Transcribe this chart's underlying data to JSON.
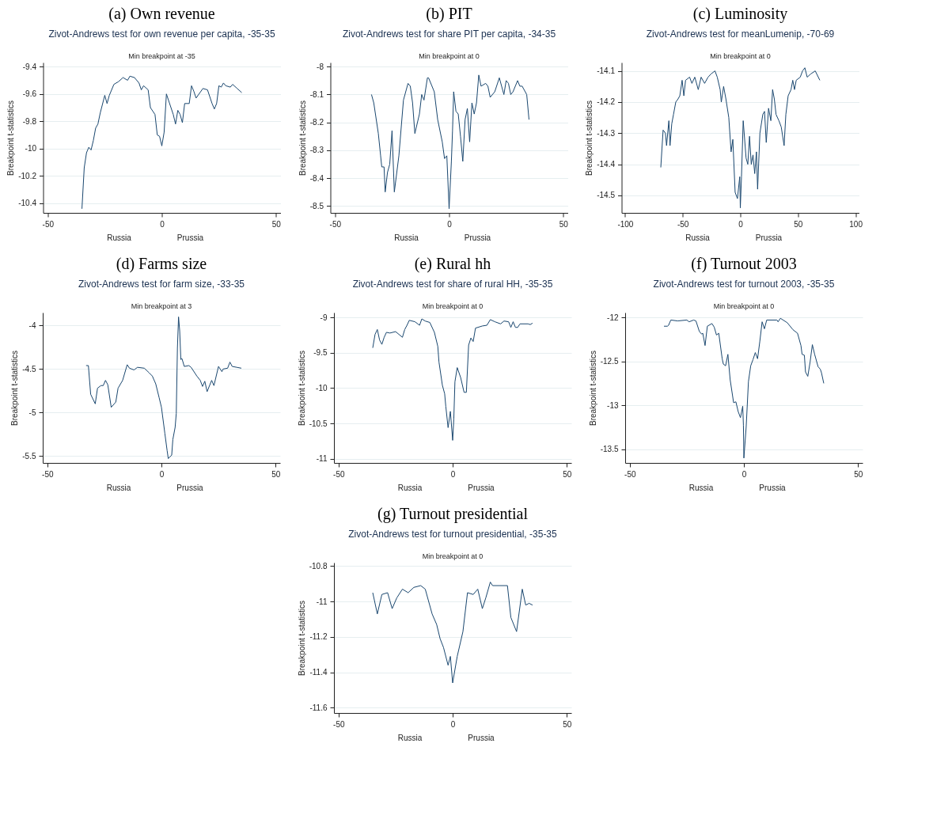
{
  "chart_data": [
    {
      "type": "line",
      "title": "(a) Own revenue",
      "subtitle": "Zivot-Andrews test for own revenue per capita, -35-35",
      "annotations": [
        "Min breakpoint at -35",
        "Russia",
        "Prussia"
      ],
      "ylabel": "Breakpoint t-statistics",
      "grid": "y",
      "xlim": [
        -52,
        52
      ],
      "xticks": [
        -50,
        0,
        50
      ],
      "ylim": [
        -10.47,
        -9.37
      ],
      "yticks": [
        -9.4,
        -9.6,
        -9.8,
        -10,
        -10.2,
        -10.4
      ],
      "x": [
        -35,
        -34,
        -33,
        -32,
        -31,
        -30,
        -29,
        -28,
        -27,
        -25,
        -24,
        -23,
        -21,
        -19,
        -17,
        -15,
        -14,
        -12,
        -10,
        -9,
        -8,
        -6,
        -5,
        -3,
        -2,
        -1,
        0,
        1,
        2,
        4,
        5,
        6,
        7,
        8,
        9,
        10,
        12,
        13,
        14,
        15,
        18,
        20,
        22,
        23,
        24,
        25,
        26,
        27,
        28,
        30,
        31,
        33,
        35
      ],
      "series": [
        {
          "color": "#1a476f",
          "values": [
            -10.44,
            -10.14,
            -10.03,
            -9.99,
            -10.01,
            -9.94,
            -9.85,
            -9.82,
            -9.74,
            -9.61,
            -9.67,
            -9.61,
            -9.53,
            -9.51,
            -9.48,
            -9.5,
            -9.47,
            -9.48,
            -9.52,
            -9.57,
            -9.54,
            -9.57,
            -9.7,
            -9.75,
            -9.9,
            -9.91,
            -9.98,
            -9.88,
            -9.6,
            -9.7,
            -9.75,
            -9.82,
            -9.72,
            -9.75,
            -9.81,
            -9.67,
            -9.67,
            -9.54,
            -9.58,
            -9.63,
            -9.56,
            -9.57,
            -9.67,
            -9.71,
            -9.67,
            -9.54,
            -9.55,
            -9.52,
            -9.54,
            -9.55,
            -9.53,
            -9.56,
            -9.59
          ]
        }
      ]
    },
    {
      "type": "line",
      "title": "(b) PIT",
      "subtitle": "Zivot-Andrews test for share PIT per capita, -34-35",
      "annotations": [
        "Min breakpoint at 0",
        "Russia",
        "Prussia"
      ],
      "ylabel": "Breakpoint t-statistics",
      "grid": "y",
      "xlim": [
        -52,
        52
      ],
      "xticks": [
        -50,
        0,
        50
      ],
      "ylim": [
        -8.525,
        -7.985
      ],
      "yticks": [
        -8,
        -8.1,
        -8.2,
        -8.3,
        -8.4,
        -8.5
      ],
      "x": [
        -34,
        -33,
        -31,
        -30,
        -29.5,
        -28.5,
        -28,
        -27,
        -26,
        -25,
        -24,
        -22,
        -20,
        -18,
        -17,
        -16,
        -15,
        -13,
        -12,
        -11,
        -9.5,
        -9,
        -6.5,
        -5,
        -3,
        -2,
        -1,
        0,
        1,
        1.5,
        2,
        3,
        4,
        5,
        6,
        7,
        8,
        9,
        10,
        11,
        12,
        13,
        14,
        16,
        17,
        18,
        20,
        22,
        24,
        25,
        26,
        27,
        28,
        30,
        31,
        32,
        34,
        35
      ],
      "series": [
        {
          "color": "#1a476f",
          "values": [
            -8.1,
            -8.13,
            -8.24,
            -8.32,
            -8.36,
            -8.36,
            -8.45,
            -8.38,
            -8.35,
            -8.23,
            -8.45,
            -8.32,
            -8.12,
            -8.06,
            -8.07,
            -8.13,
            -8.24,
            -8.17,
            -8.1,
            -8.12,
            -8.04,
            -8.04,
            -8.09,
            -8.19,
            -8.27,
            -8.33,
            -8.32,
            -8.51,
            -8.34,
            -8.23,
            -8.09,
            -8.16,
            -8.17,
            -8.25,
            -8.34,
            -8.19,
            -8.15,
            -8.27,
            -8.13,
            -8.17,
            -8.13,
            -8.03,
            -8.07,
            -8.06,
            -8.07,
            -8.11,
            -8.09,
            -8.04,
            -8.1,
            -8.05,
            -8.06,
            -8.1,
            -8.09,
            -8.05,
            -8.07,
            -8.07,
            -8.1,
            -8.19
          ]
        }
      ]
    },
    {
      "type": "line",
      "title": "(c) Luminosity",
      "subtitle": "Zivot-Andrews test for meanLumenip, -70-69",
      "annotations": [
        "Min breakpoint at 0",
        "Russia",
        "Prussia"
      ],
      "ylabel": "Breakpoint t-statistics",
      "grid": "y",
      "xlim": [
        -103,
        103
      ],
      "xticks": [
        -100,
        -50,
        0,
        50,
        100
      ],
      "ylim": [
        -14.556,
        -14.073
      ],
      "yticks": [
        -14.1,
        -14.2,
        -14.3,
        -14.4,
        -14.5
      ],
      "x": [
        -69,
        -68,
        -67,
        -65,
        -64,
        -62,
        -61,
        -59.5,
        -58,
        -56,
        -54,
        -52.5,
        -50.5,
        -49,
        -47.5,
        -44,
        -42,
        -39.5,
        -36.5,
        -34,
        -31,
        -28,
        -25.5,
        -22,
        -20,
        -17.5,
        -16.5,
        -14.5,
        -12.5,
        -10,
        -8,
        -6.5,
        -4.5,
        -2.5,
        -0.5,
        0,
        1,
        2.5,
        5,
        6.5,
        8,
        9.5,
        11,
        12.5,
        14,
        15,
        17,
        19.5,
        21,
        22.5,
        24.5,
        26.5,
        28,
        29.5,
        31,
        33.5,
        35.5,
        38,
        39.5,
        41.5,
        44,
        45.5,
        47,
        48.5,
        52,
        54,
        56,
        58,
        61,
        65,
        69
      ],
      "series": [
        {
          "color": "#1a476f",
          "values": [
            -14.41,
            -14.35,
            -14.29,
            -14.3,
            -14.34,
            -14.26,
            -14.34,
            -14.27,
            -14.24,
            -14.2,
            -14.19,
            -14.18,
            -14.13,
            -14.18,
            -14.13,
            -14.12,
            -14.14,
            -14.12,
            -14.16,
            -14.12,
            -14.14,
            -14.12,
            -14.11,
            -14.1,
            -14.12,
            -14.16,
            -14.2,
            -14.15,
            -14.19,
            -14.25,
            -14.36,
            -14.32,
            -14.49,
            -14.51,
            -14.44,
            -14.54,
            -14.44,
            -14.26,
            -14.38,
            -14.4,
            -14.31,
            -14.4,
            -14.37,
            -14.43,
            -14.36,
            -14.48,
            -14.3,
            -14.24,
            -14.23,
            -14.33,
            -14.22,
            -14.26,
            -14.16,
            -14.19,
            -14.24,
            -14.26,
            -14.28,
            -14.34,
            -14.24,
            -14.18,
            -14.16,
            -14.13,
            -14.16,
            -14.13,
            -14.12,
            -14.1,
            -14.09,
            -14.12,
            -14.11,
            -14.1,
            -14.13
          ]
        }
      ]
    },
    {
      "type": "line",
      "title": "(d) Farms size",
      "subtitle": "Zivot-Andrews test for farm size, -33-35",
      "annotations": [
        "Min breakpoint at 3",
        "Russia",
        "Prussia"
      ],
      "ylabel": "Breakpoint t-statistics",
      "grid": "y",
      "xlim": [
        -52,
        52
      ],
      "xticks": [
        -50,
        0,
        50
      ],
      "ylim": [
        -5.58,
        -3.85
      ],
      "yticks": [
        -4,
        -4.5,
        -5,
        -5.5
      ],
      "x": [
        -33,
        -32,
        -31,
        -29,
        -28,
        -26.5,
        -25.5,
        -24.5,
        -23.5,
        -22,
        -20,
        -19,
        -17,
        -15,
        -14,
        -12,
        -10.5,
        -7.5,
        -5.5,
        -4,
        -2.5,
        -1,
        0,
        1.5,
        2.5,
        3,
        4.5,
        5,
        6,
        6.5,
        7,
        7.5,
        8,
        8.5,
        9,
        10,
        12,
        13,
        15.5,
        17,
        18,
        19,
        20,
        22,
        23,
        25,
        26.5,
        27,
        29,
        30,
        31,
        33,
        35
      ],
      "series": [
        {
          "color": "#1a476f",
          "values": [
            -4.46,
            -4.46,
            -4.79,
            -4.9,
            -4.72,
            -4.69,
            -4.69,
            -4.63,
            -4.68,
            -4.94,
            -4.88,
            -4.72,
            -4.63,
            -4.45,
            -4.49,
            -4.51,
            -4.48,
            -4.49,
            -4.54,
            -4.58,
            -4.67,
            -4.83,
            -4.94,
            -5.24,
            -5.44,
            -5.53,
            -5.49,
            -5.31,
            -5.17,
            -5.01,
            -4.26,
            -3.9,
            -4.06,
            -4.39,
            -4.38,
            -4.47,
            -4.46,
            -4.48,
            -4.58,
            -4.63,
            -4.7,
            -4.64,
            -4.76,
            -4.63,
            -4.69,
            -4.47,
            -4.53,
            -4.5,
            -4.49,
            -4.42,
            -4.47,
            -4.48,
            -4.49
          ]
        }
      ]
    },
    {
      "type": "line",
      "title": "(e) Rural hh",
      "subtitle": "Zivot-Andrews test for share of rural HH, -35-35",
      "annotations": [
        "Min breakpoint at 0",
        "Russia",
        "Prussia"
      ],
      "ylabel": "Breakpoint t-statistics",
      "grid": "y",
      "xlim": [
        -52,
        52
      ],
      "xticks": [
        -50,
        0,
        50
      ],
      "ylim": [
        -11.06,
        -8.93
      ],
      "yticks": [
        -9,
        -9.5,
        -10,
        -10.5,
        -11
      ],
      "x": [
        -35,
        -34,
        -33,
        -32,
        -31,
        -30,
        -29,
        -27.5,
        -25,
        -22,
        -21,
        -20,
        -19,
        -16.5,
        -14.5,
        -13.5,
        -12,
        -10,
        -8,
        -6.5,
        -6,
        -4.5,
        -3.5,
        -3,
        -2,
        -1,
        0,
        0.5,
        1,
        2,
        3.5,
        5,
        6,
        7,
        8,
        9,
        10,
        13,
        15,
        16.5,
        18.5,
        21,
        22.5,
        24.5,
        25.5,
        26.5,
        27.5,
        28.5,
        29.5,
        33,
        34,
        35
      ],
      "series": [
        {
          "color": "#1a476f",
          "values": [
            -9.43,
            -9.24,
            -9.17,
            -9.32,
            -9.38,
            -9.28,
            -9.21,
            -9.22,
            -9.2,
            -9.28,
            -9.17,
            -9.11,
            -9.04,
            -9.06,
            -9.11,
            -9.02,
            -9.05,
            -9.07,
            -9.21,
            -9.41,
            -9.63,
            -9.96,
            -10.08,
            -10.26,
            -10.56,
            -10.33,
            -10.74,
            -10.44,
            -9.91,
            -9.71,
            -9.85,
            -10.06,
            -10.06,
            -9.39,
            -9.29,
            -9.34,
            -9.15,
            -9.12,
            -9.11,
            -9.03,
            -9.06,
            -9.09,
            -9.05,
            -9.06,
            -9.14,
            -9.06,
            -9.14,
            -9.14,
            -9.09,
            -9.09,
            -9.1,
            -9.08
          ]
        }
      ]
    },
    {
      "type": "line",
      "title": "(f) Turnout 2003",
      "subtitle": "Zivot-Andrews test for turnout 2003, -35-35",
      "annotations": [
        "Min breakpoint at 0",
        "Russia",
        "Prussia"
      ],
      "ylabel": "Breakpoint t-statistics",
      "grid": "y",
      "xlim": [
        -52,
        52
      ],
      "xticks": [
        -50,
        0,
        50
      ],
      "ylim": [
        -13.655,
        -11.945
      ],
      "yticks": [
        -12,
        -12.5,
        -13,
        -13.5
      ],
      "x": [
        -35,
        -33.5,
        -33,
        -32,
        -29,
        -25,
        -24,
        -22,
        -21,
        -19.5,
        -18.5,
        -18,
        -17,
        -16,
        -14,
        -13,
        -12,
        -11,
        -9.5,
        -9,
        -8,
        -7,
        -6,
        -4.5,
        -3.5,
        -2.5,
        -1.5,
        -0.5,
        -0.2,
        0,
        1,
        2,
        3,
        4,
        5,
        6,
        7,
        8,
        9,
        10,
        14.5,
        15,
        16,
        19,
        21.5,
        23.5,
        25,
        25.5,
        26.5,
        27,
        28,
        29,
        30,
        31,
        32.5,
        33.5,
        34,
        35
      ],
      "series": [
        {
          "color": "#1a476f",
          "values": [
            -12.1,
            -12.1,
            -12.09,
            -12.03,
            -12.04,
            -12.03,
            -12.05,
            -12.03,
            -12.04,
            -12.16,
            -12.19,
            -12.18,
            -12.32,
            -12.1,
            -12.07,
            -12.11,
            -12.2,
            -12.18,
            -12.47,
            -12.53,
            -12.55,
            -12.42,
            -12.71,
            -12.97,
            -12.96,
            -13.07,
            -13.14,
            -13.01,
            -13.23,
            -13.6,
            -13.25,
            -12.73,
            -12.55,
            -12.48,
            -12.4,
            -12.47,
            -12.27,
            -12.05,
            -12.13,
            -12.03,
            -12.03,
            -12.05,
            -12.01,
            -12.06,
            -12.14,
            -12.18,
            -12.32,
            -12.42,
            -12.43,
            -12.62,
            -12.67,
            -12.51,
            -12.31,
            -12.42,
            -12.56,
            -12.59,
            -12.63,
            -12.75
          ]
        }
      ]
    },
    {
      "type": "line",
      "title": "(g) Turnout presidential",
      "subtitle": "Zivot-Andrews test for turnout presidential, -35-35",
      "annotations": [
        "Min breakpoint at 0",
        "Russia",
        "Prussia"
      ],
      "ylabel": "Breakpoint t-statistics",
      "grid": "y",
      "xlim": [
        -52,
        52
      ],
      "xticks": [
        -50,
        0,
        50
      ],
      "ylim": [
        -11.63,
        -10.78
      ],
      "yticks": [
        -10.8,
        -11,
        -11.2,
        -11.4,
        -11.6
      ],
      "x": [
        -35,
        -33,
        -31,
        -28.5,
        -26.5,
        -24.5,
        -22,
        -19.5,
        -17,
        -14,
        -12,
        -9,
        -7,
        -5.5,
        -4,
        -2,
        -1,
        0,
        2,
        4.5,
        6.5,
        9,
        11,
        13,
        14.5,
        16.5,
        17.5,
        24,
        25.5,
        28,
        30.5,
        32,
        33.5,
        35
      ],
      "series": [
        {
          "color": "#1a476f",
          "values": [
            -10.95,
            -11.07,
            -10.96,
            -10.95,
            -11.04,
            -10.98,
            -10.93,
            -10.95,
            -10.92,
            -10.91,
            -10.93,
            -11.07,
            -11.13,
            -11.21,
            -11.26,
            -11.36,
            -11.31,
            -11.46,
            -11.31,
            -11.17,
            -10.95,
            -10.96,
            -10.93,
            -11.04,
            -10.98,
            -10.89,
            -10.91,
            -10.91,
            -11.09,
            -11.17,
            -10.93,
            -11.02,
            -11.01,
            -11.02
          ]
        }
      ]
    }
  ]
}
